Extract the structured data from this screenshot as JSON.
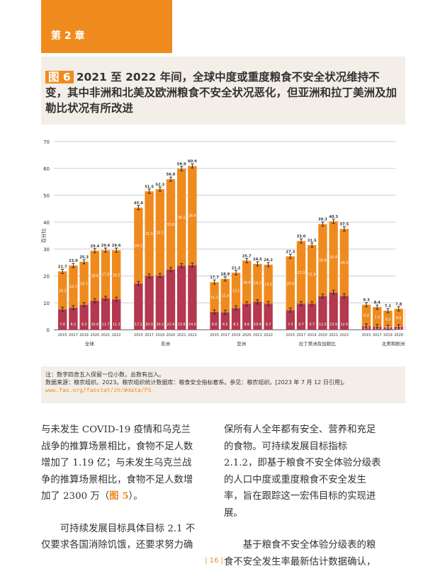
{
  "chapter": "第 2 章",
  "figure": {
    "tag": "图 6",
    "title": "2021 至 2022 年间，全球中度或重度粮食不安全状况维持不变，其中非洲和北美及欧洲粮食不安全状况恶化，但亚洲和拉丁美洲及加勒比状况有所改进"
  },
  "chart_data": {
    "type": "bar",
    "stacked": true,
    "ylabel": "百分比",
    "ylim": [
      0,
      70
    ],
    "yticks": [
      0,
      10,
      20,
      30,
      40,
      50,
      60,
      70
    ],
    "grid": true,
    "years": [
      "2015",
      "2017",
      "2019",
      "2020",
      "2021",
      "2022"
    ],
    "colors": {
      "severe": "#b4384f",
      "moderate": "#ef8b1e"
    },
    "groups": [
      {
        "name": "全球",
        "severe": [
          "7.6",
          "8.2",
          "9.3",
          "10.8",
          "11.7",
          "11.3"
        ],
        "moderate": [
          "14.2",
          "15.7",
          "16.1",
          "18.6",
          "17.9",
          "18.3"
        ],
        "total": [
          "21.7",
          "23.9",
          "25.3",
          "29.4",
          "29.6",
          "29.6"
        ]
      },
      {
        "name": "非洲",
        "severe": [
          "17.2",
          "20.0",
          "20.2",
          "22.4",
          "23.8",
          "24.0"
        ],
        "moderate": [
          "28.2",
          "31.5",
          "32.1",
          "33.6",
          "36.1",
          "36.9"
        ],
        "total": [
          "45.4",
          "51.5",
          "52.3",
          "56.0",
          "59.9",
          "60.9"
        ]
      },
      {
        "name": "亚洲",
        "severe": [
          "6.6",
          "6.5",
          "8.1",
          "9.6",
          "10.4",
          "9.7"
        ],
        "moderate": [
          "11.2",
          "12.4",
          "13.1",
          "16.0",
          "14.2",
          "14.5"
        ],
        "total": [
          "17.7",
          "18.9",
          "21.2",
          "25.7",
          "24.5",
          "24.2"
        ]
      },
      {
        "name": "拉丁美洲及加勒比",
        "severe": [
          "7.3",
          "9.7",
          "9.7",
          "12.5",
          "13.9",
          "12.6"
        ],
        "moderate": [
          "20.0",
          "23.3",
          "21.9",
          "26.8",
          "26.4",
          "24.9"
        ],
        "total": [
          "27.3",
          "33.0",
          "31.5",
          "39.3",
          "40.3",
          "37.5"
        ]
      },
      {
        "name": "北美和欧洲",
        "severe": [
          "1.4",
          "1.2",
          "0.9",
          "1.1",
          "1.5",
          "1.5"
        ],
        "moderate": [
          "8.0",
          "7.2",
          "6.2",
          "6.6",
          "6.2",
          "6.6"
        ],
        "total": [
          "9.3",
          "8.4",
          "7.1",
          "7.8",
          "7.7",
          "8.0"
        ]
      }
    ]
  },
  "notes": {
    "note": "注：数字四舍五入保留一位小数，总数有出入。",
    "source": "数据来源：粮农组织。2023。粮农组织统计数据库：粮食安全指标套系。参见：粮农组织。[2023 年 7 月 12 日引用]。",
    "url": "www.fao.org/faostat/zh/#data/FS"
  },
  "body": {
    "left_p1_a": "与未发生 COVID-19 疫情和乌克兰战争的推算场景相比，食物不足人数增加了 1.19 亿；与未发生乌克兰战争的推算场景相比，食物不足人数增加了 2300 万（",
    "left_p1_ref": "图 5",
    "left_p1_b": "）。",
    "left_p2": "可持续发展目标具体目标 2.1 不仅要求各国消除饥饿，还要求努力确",
    "right_p1": "保所有人全年都有安全、营养和充足的食物。可持续发展目标指标 2.1.2，即基于粮食不安全体验分级表的人口中度或重度粮食不安全发生率，旨在跟踪这一宏伟目标的实现进展。",
    "right_p2": "基于粮食不安全体验分级表的粮食不安全发生率最新估计数据确认，"
  },
  "page_number": "| 16 |"
}
